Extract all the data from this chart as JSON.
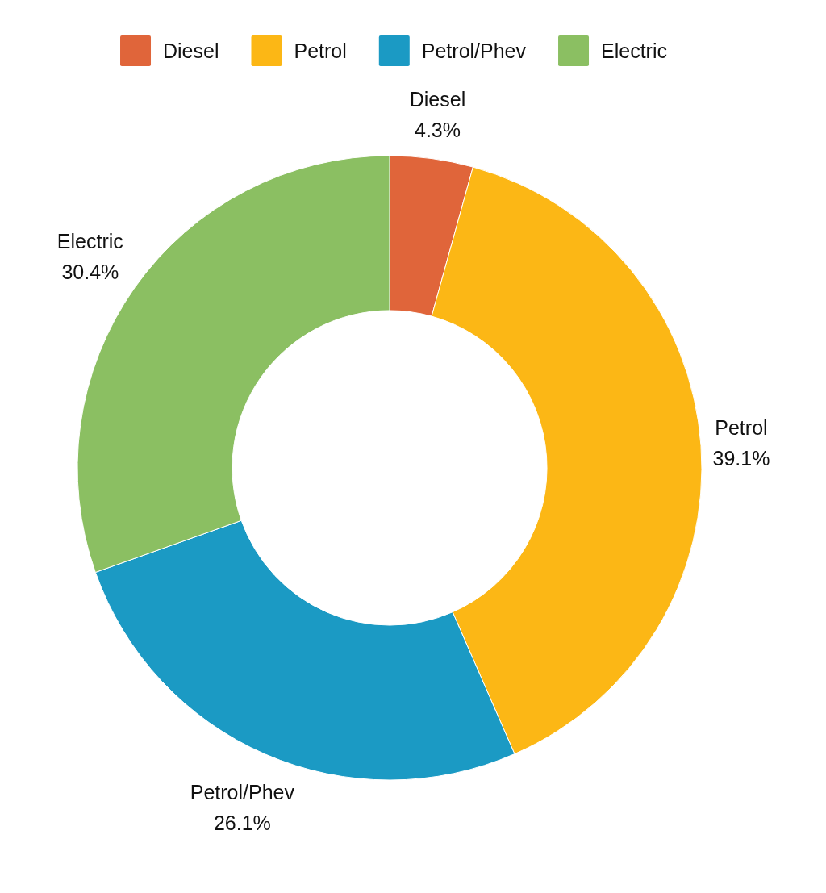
{
  "chart_data": {
    "type": "donut",
    "categories": [
      "Diesel",
      "Petrol",
      "Petrol/Phev",
      "Electric"
    ],
    "values": [
      4.3,
      39.1,
      26.1,
      30.4
    ],
    "colors": [
      "#e0653a",
      "#fcb715",
      "#1b9ac4",
      "#8bbf62"
    ],
    "value_labels": [
      "4.3%",
      "39.1%",
      "26.1%",
      "30.4%"
    ],
    "legend": "top"
  }
}
